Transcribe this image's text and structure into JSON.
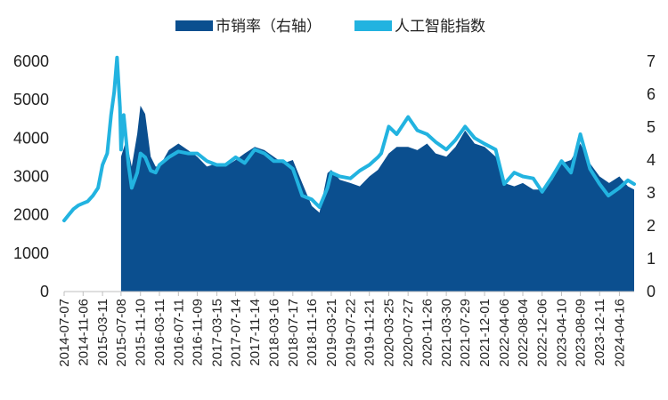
{
  "chart_data": {
    "type": "line",
    "title": "",
    "xlabel": "",
    "ylabel": "",
    "legend_position": "top",
    "grid": false,
    "x_tick_labels": [
      "2014-07-07",
      "2014-11-06",
      "2015-03-11",
      "2015-07-08",
      "2015-11-10",
      "2016-03-11",
      "2016-07-11",
      "2016-11-09",
      "2017-03-15",
      "2017-07-14",
      "2017-11-14",
      "2018-03-16",
      "2018-07-17",
      "2018-11-16",
      "2019-03-21",
      "2019-07-22",
      "2019-11-21",
      "2020-03-25",
      "2020-07-27",
      "2020-11-26",
      "2021-03-30",
      "2021-07-29",
      "2021-12-01",
      "2022-04-06",
      "2022-08-04",
      "2022-12-06",
      "2023-04-10",
      "2023-08-09",
      "2023-12-11",
      "2024-04-16"
    ],
    "y_left": {
      "range": [
        0,
        6000
      ],
      "ticks": [
        "0",
        "1000",
        "2000",
        "3000",
        "4000",
        "5000",
        "6000"
      ]
    },
    "y_right": {
      "range": [
        0,
        7
      ],
      "ticks": [
        "0",
        "1",
        "2",
        "3",
        "4",
        "5",
        "6",
        "7"
      ]
    },
    "series": [
      {
        "name": "市销率（右轴）",
        "type": "area",
        "axis": "right",
        "color": "#0b4f8f",
        "x": [
          "2015-07-08",
          "2015-08-10",
          "2015-09-15",
          "2015-10-20",
          "2015-11-10",
          "2015-12-10",
          "2016-01-15",
          "2016-02-15",
          "2016-03-11",
          "2016-05-10",
          "2016-07-11",
          "2016-09-10",
          "2016-11-09",
          "2017-01-10",
          "2017-03-15",
          "2017-05-10",
          "2017-07-14",
          "2017-09-10",
          "2017-11-14",
          "2018-01-15",
          "2018-03-16",
          "2018-05-15",
          "2018-07-17",
          "2018-09-15",
          "2018-11-16",
          "2019-01-04",
          "2019-02-25",
          "2019-03-21",
          "2019-05-15",
          "2019-07-22",
          "2019-09-20",
          "2019-11-21",
          "2020-01-15",
          "2020-03-25",
          "2020-05-15",
          "2020-07-27",
          "2020-09-25",
          "2020-11-26",
          "2021-01-20",
          "2021-03-30",
          "2021-05-28",
          "2021-07-29",
          "2021-09-28",
          "2021-12-01",
          "2022-02-10",
          "2022-04-06",
          "2022-06-10",
          "2022-08-04",
          "2022-10-10",
          "2022-12-06",
          "2023-02-10",
          "2023-04-10",
          "2023-06-10",
          "2023-08-09",
          "2023-10-10",
          "2023-12-11",
          "2024-02-10",
          "2024-04-16",
          "2024-06-10",
          "2024-07-20"
        ],
        "values": [
          4.1,
          4.6,
          3.8,
          4.8,
          5.65,
          5.4,
          4.1,
          3.8,
          3.8,
          4.3,
          4.5,
          4.3,
          4.1,
          3.8,
          3.9,
          3.8,
          4.0,
          4.2,
          4.4,
          4.3,
          4.1,
          3.9,
          4.0,
          3.3,
          2.6,
          2.4,
          3.6,
          3.7,
          3.4,
          3.3,
          3.2,
          3.5,
          3.7,
          4.2,
          4.4,
          4.4,
          4.3,
          4.5,
          4.2,
          4.1,
          4.4,
          4.9,
          4.5,
          4.4,
          4.1,
          3.3,
          3.2,
          3.3,
          3.1,
          3.1,
          3.4,
          3.9,
          4.0,
          4.5,
          3.9,
          3.5,
          3.3,
          3.5,
          3.2,
          3.1
        ]
      },
      {
        "name": "人工智能指数",
        "type": "line",
        "axis": "left",
        "color": "#22b3e0",
        "x": [
          "2014-07-07",
          "2014-08-05",
          "2014-09-05",
          "2014-10-08",
          "2014-11-06",
          "2014-12-05",
          "2015-01-08",
          "2015-02-10",
          "2015-03-11",
          "2015-04-10",
          "2015-05-05",
          "2015-05-25",
          "2015-06-12",
          "2015-07-01",
          "2015-07-08",
          "2015-07-25",
          "2015-08-25",
          "2015-09-15",
          "2015-10-20",
          "2015-11-10",
          "2015-12-10",
          "2016-01-15",
          "2016-02-15",
          "2016-03-11",
          "2016-05-10",
          "2016-07-11",
          "2016-09-10",
          "2016-11-09",
          "2017-01-10",
          "2017-03-15",
          "2017-05-10",
          "2017-07-14",
          "2017-09-10",
          "2017-11-14",
          "2018-01-15",
          "2018-03-16",
          "2018-05-15",
          "2018-07-17",
          "2018-09-15",
          "2018-11-16",
          "2019-01-04",
          "2019-02-25",
          "2019-03-21",
          "2019-05-15",
          "2019-07-22",
          "2019-09-20",
          "2019-11-21",
          "2020-01-15",
          "2020-02-05",
          "2020-03-25",
          "2020-05-15",
          "2020-07-27",
          "2020-09-25",
          "2020-11-26",
          "2021-01-20",
          "2021-03-30",
          "2021-05-28",
          "2021-07-29",
          "2021-09-28",
          "2021-12-01",
          "2022-02-10",
          "2022-04-06",
          "2022-06-10",
          "2022-08-04",
          "2022-10-10",
          "2022-12-06",
          "2023-02-10",
          "2023-04-10",
          "2023-06-10",
          "2023-08-09",
          "2023-10-10",
          "2023-12-11",
          "2024-02-05",
          "2024-04-16",
          "2024-06-10",
          "2024-07-20"
        ],
        "values": [
          1850,
          2000,
          2150,
          2250,
          2300,
          2350,
          2500,
          2700,
          3300,
          3600,
          4600,
          5200,
          6100,
          4800,
          3700,
          4600,
          3300,
          2700,
          3100,
          3600,
          3500,
          3150,
          3100,
          3300,
          3500,
          3650,
          3600,
          3600,
          3400,
          3300,
          3300,
          3500,
          3350,
          3700,
          3600,
          3400,
          3400,
          3200,
          2500,
          2400,
          2200,
          2700,
          3100,
          3000,
          2950,
          3150,
          3300,
          3500,
          3600,
          4300,
          4100,
          4550,
          4200,
          4100,
          3900,
          3700,
          3950,
          4300,
          4000,
          3850,
          3700,
          2800,
          3100,
          3000,
          2950,
          2600,
          3000,
          3400,
          3100,
          4100,
          3200,
          2800,
          2500,
          2700,
          2900,
          2800
        ]
      }
    ]
  }
}
